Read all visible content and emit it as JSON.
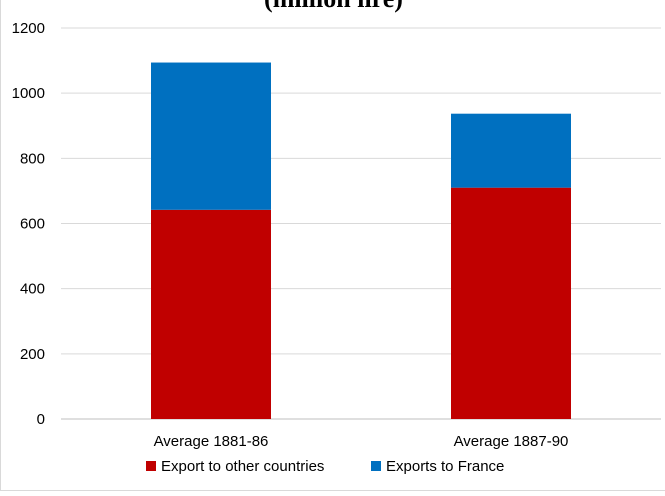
{
  "chart_data": {
    "type": "bar",
    "stacked": true,
    "title": "(million lire)",
    "categories": [
      "Average 1881-86",
      "Average 1887-90"
    ],
    "series": [
      {
        "name": "Export to other countries",
        "values": [
          642,
          710
        ],
        "color": "#c00000"
      },
      {
        "name": "Exports to France",
        "values": [
          452,
          227
        ],
        "color": "#0070c0"
      }
    ],
    "ylim": [
      0,
      1200
    ],
    "yticks": [
      0,
      200,
      400,
      600,
      800,
      1000,
      1200
    ],
    "xlabel": "",
    "ylabel": "",
    "grid": true,
    "legend": "bottom"
  }
}
